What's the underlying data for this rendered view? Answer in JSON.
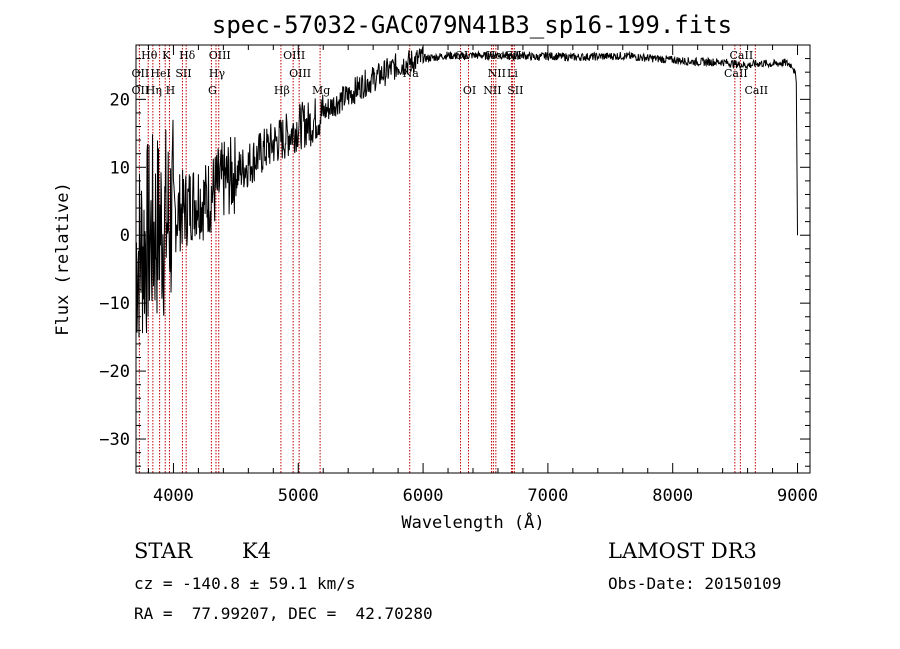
{
  "chart_data": {
    "type": "line",
    "title": "spec-57032-GAC079N41B3_sp16-199.fits",
    "xlabel": "Wavelength (Å)",
    "ylabel": "Flux (relative)",
    "xlim": [
      3700,
      9100
    ],
    "ylim": [
      -35,
      28
    ],
    "xticks": [
      4000,
      5000,
      6000,
      7000,
      8000,
      9000
    ],
    "yticks": [
      -30,
      -20,
      -10,
      0,
      10,
      20
    ],
    "series": [
      {
        "name": "flux",
        "x": [
          3700,
          3740,
          3780,
          3820,
          3860,
          3900,
          3950,
          4000,
          4050,
          4100,
          4150,
          4200,
          4250,
          4300,
          4350,
          4400,
          4450,
          4500,
          4600,
          4700,
          4800,
          4900,
          5000,
          5100,
          5200,
          5300,
          5400,
          5500,
          5600,
          5700,
          5800,
          5900,
          6000,
          6100,
          6200,
          6300,
          6400,
          6500,
          6600,
          6700,
          6800,
          6900,
          7000,
          7200,
          7400,
          7600,
          7800,
          8000,
          8200,
          8400,
          8500,
          8600,
          8700,
          8800,
          8900,
          8960,
          8990,
          9000
        ],
        "y": [
          -3,
          -2,
          -1,
          0,
          1,
          1.5,
          2,
          3,
          3.5,
          4,
          5,
          5.5,
          5,
          6,
          7,
          8,
          8.5,
          9,
          10.5,
          12,
          13.5,
          14.5,
          16,
          16.5,
          18,
          19.5,
          20.5,
          22,
          23,
          24,
          25,
          25.5,
          26,
          26.2,
          26.5,
          26.3,
          26.5,
          26.4,
          26.6,
          26.3,
          26.5,
          26.2,
          26.4,
          26.2,
          26.3,
          26.4,
          26.1,
          25.8,
          25.5,
          25.5,
          25.2,
          25,
          25.3,
          25.2,
          25.4,
          25,
          23,
          0
        ]
      }
    ],
    "annotation_lines": [
      {
        "label": "Hθ",
        "wavelength": 3798,
        "row": 0
      },
      {
        "label": "K",
        "wavelength": 3934,
        "row": 0
      },
      {
        "label": "Hδ",
        "wavelength": 4102,
        "row": 0
      },
      {
        "label": "OIII",
        "wavelength": 4363,
        "row": 0
      },
      {
        "label": "OIII",
        "wavelength": 4959,
        "row": 0
      },
      {
        "label": "OI",
        "wavelength": 6300,
        "row": 0
      },
      {
        "label": "Hα",
        "wavelength": 6563,
        "row": 0
      },
      {
        "label": "SII",
        "wavelength": 6716,
        "row": 0
      },
      {
        "label": "CaII",
        "wavelength": 8542,
        "row": 0
      },
      {
        "label": "OII",
        "wavelength": 3727,
        "row": 1
      },
      {
        "label": "HeI",
        "wavelength": 3889,
        "row": 1
      },
      {
        "label": "SII",
        "wavelength": 4072,
        "row": 1
      },
      {
        "label": "Hγ",
        "wavelength": 4341,
        "row": 1
      },
      {
        "label": "OIII",
        "wavelength": 5007,
        "row": 1
      },
      {
        "label": "Na",
        "wavelength": 5893,
        "row": 1
      },
      {
        "label": "NII",
        "wavelength": 6583,
        "row": 1
      },
      {
        "label": "Li",
        "wavelength": 6708,
        "row": 1
      },
      {
        "label": "CaII",
        "wavelength": 8498,
        "row": 1
      },
      {
        "label": "OII",
        "wavelength": 3727,
        "row": 2
      },
      {
        "label": "Hη",
        "wavelength": 3835,
        "row": 2
      },
      {
        "label": "H",
        "wavelength": 3968,
        "row": 2
      },
      {
        "label": "G",
        "wavelength": 4304,
        "row": 2
      },
      {
        "label": "Hβ",
        "wavelength": 4861,
        "row": 2
      },
      {
        "label": "Mg",
        "wavelength": 5175,
        "row": 2
      },
      {
        "label": "OI",
        "wavelength": 6364,
        "row": 2
      },
      {
        "label": "NII",
        "wavelength": 6548,
        "row": 2
      },
      {
        "label": "SII",
        "wavelength": 6731,
        "row": 2
      },
      {
        "label": "CaII",
        "wavelength": 8662,
        "row": 2
      }
    ]
  },
  "info": {
    "object_class": "STAR",
    "subclass": "K4",
    "survey": "LAMOST DR3",
    "cz": "cz = -140.8 ± 59.1 km/s",
    "obs_date": "Obs-Date: 20150109",
    "coords": "RA =  77.99207, DEC =  42.70280"
  }
}
